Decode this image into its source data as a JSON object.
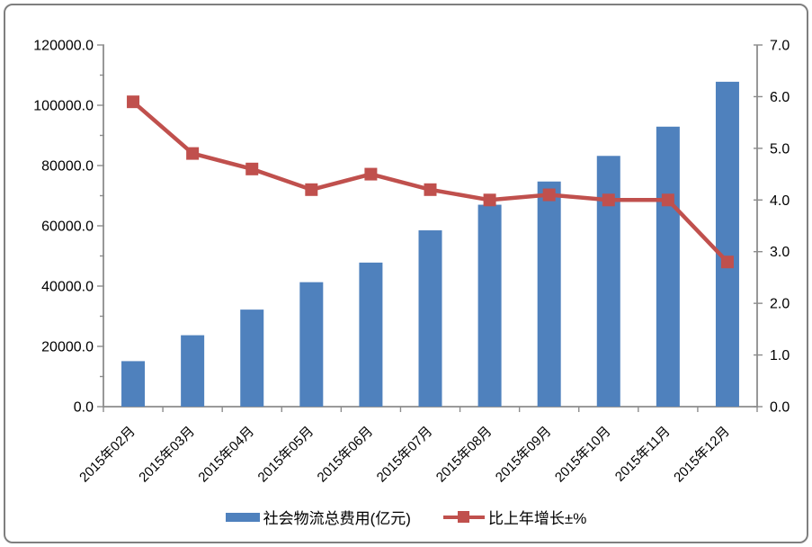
{
  "legend": {
    "items": [
      {
        "label": "社会物流总费用(亿元)",
        "marker": "bar-swatch",
        "color": "#4F81BD"
      },
      {
        "label": "比上年增长±%",
        "marker": "line-swatch",
        "color": "#C0504D"
      }
    ]
  },
  "chart_data": {
    "type": "combo-bar-line",
    "categories": [
      "2015年02月",
      "2015年03月",
      "2015年04月",
      "2015年05月",
      "2015年06月",
      "2015年07月",
      "2015年08月",
      "2015年09月",
      "2015年10月",
      "2015年11月",
      "2015年12月"
    ],
    "series": [
      {
        "name": "社会物流总费用(亿元)",
        "type": "bar",
        "axis": "left",
        "color": "#4F81BD",
        "values": [
          15100,
          23700,
          32200,
          41300,
          47800,
          58500,
          67000,
          74700,
          83200,
          92900,
          107800
        ]
      },
      {
        "name": "比上年增长±%",
        "type": "line",
        "axis": "right",
        "color": "#C0504D",
        "marker": "square",
        "values": [
          5.9,
          4.9,
          4.6,
          4.2,
          4.5,
          4.2,
          4.0,
          4.1,
          4.0,
          4.0,
          2.8
        ]
      }
    ],
    "left_axis": {
      "min": 0,
      "max": 120000,
      "major_step": 20000,
      "minor_step": 10000,
      "tick_labels": [
        "120000.0",
        "100000.0",
        "80000.0",
        "60000.0",
        "40000.0",
        "20000.0",
        "0.0"
      ]
    },
    "right_axis": {
      "min": 0,
      "max": 7,
      "major_step": 1,
      "tick_labels": [
        "7.0",
        "6.0",
        "5.0",
        "4.0",
        "3.0",
        "2.0",
        "1.0",
        "0.0"
      ]
    },
    "title": "",
    "grid": false,
    "legend_position": "bottom",
    "x_label_rotation": -45,
    "axis_color": "#8C8C8C",
    "text_color": "#000000",
    "background_color": "#FFFFFF",
    "frame_border_color": "#7F7F7F"
  }
}
